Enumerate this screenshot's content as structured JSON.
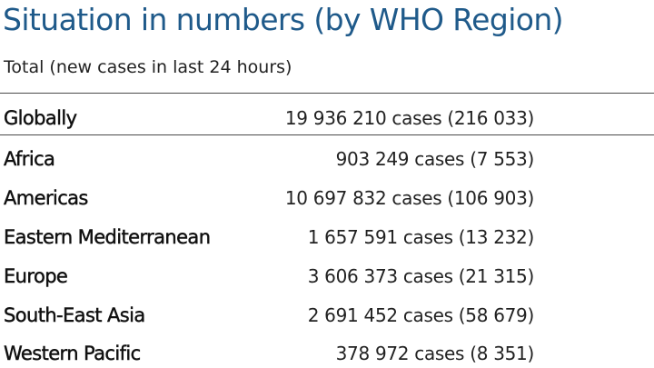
{
  "title": "Situation in numbers (by WHO Region)",
  "subtitle": "Total (new cases in last 24 hours)",
  "global": {
    "label": "Globally",
    "value": "19 936 210 cases (216 033)"
  },
  "regions": [
    {
      "label": "Africa",
      "value": "903 249 cases (7 553)"
    },
    {
      "label": "Americas",
      "value": "10 697 832 cases (106 903)"
    },
    {
      "label": "Eastern Mediterranean",
      "value": "1 657 591 cases (13 232)"
    },
    {
      "label": "Europe",
      "value": "3 606 373 cases (21 315)"
    },
    {
      "label": "South-East Asia",
      "value": "2 691 452 cases (58 679)"
    },
    {
      "label": "Western Pacific",
      "value": "378 972 cases (8 351)"
    }
  ],
  "colors": {
    "title": "#1f5a8a",
    "rule": "#4a4a4a",
    "text": "#111111"
  }
}
